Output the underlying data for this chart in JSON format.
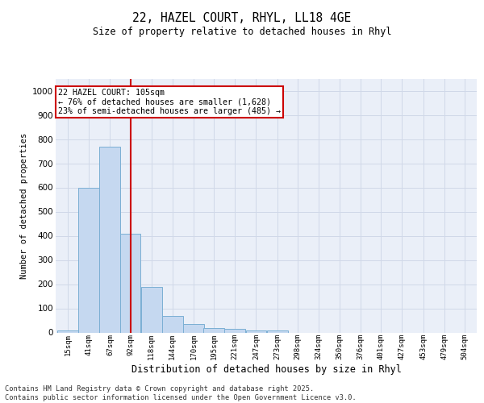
{
  "title_line1": "22, HAZEL COURT, RHYL, LL18 4GE",
  "title_line2": "Size of property relative to detached houses in Rhyl",
  "xlabel": "Distribution of detached houses by size in Rhyl",
  "ylabel": "Number of detached properties",
  "bar_edges": [
    15,
    41,
    67,
    92,
    118,
    144,
    170,
    195,
    221,
    247,
    273,
    298,
    324,
    350,
    376,
    401,
    427,
    453,
    479,
    504,
    530
  ],
  "bar_heights": [
    10,
    600,
    770,
    410,
    190,
    70,
    35,
    20,
    15,
    10,
    10,
    0,
    0,
    0,
    0,
    0,
    0,
    0,
    0,
    0
  ],
  "bar_color": "#c5d8f0",
  "bar_edge_color": "#7bafd4",
  "grid_color": "#d0d8e8",
  "bg_color": "#eaeff8",
  "vline_x": 105,
  "vline_color": "#cc0000",
  "annotation_text": "22 HAZEL COURT: 105sqm\n← 76% of detached houses are smaller (1,628)\n23% of semi-detached houses are larger (485) →",
  "annotation_box_color": "#cc0000",
  "yticks": [
    0,
    100,
    200,
    300,
    400,
    500,
    600,
    700,
    800,
    900,
    1000
  ],
  "ylim": [
    0,
    1050
  ],
  "footer_line1": "Contains HM Land Registry data © Crown copyright and database right 2025.",
  "footer_line2": "Contains public sector information licensed under the Open Government Licence v3.0."
}
